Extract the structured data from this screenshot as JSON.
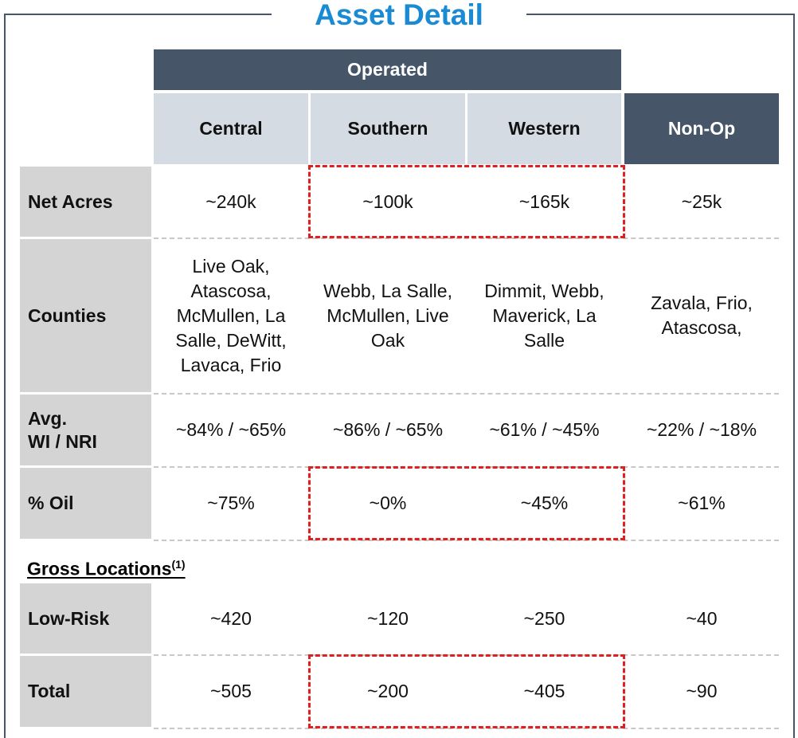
{
  "title": "Asset Detail",
  "group_header": "Operated",
  "columns": [
    "Central",
    "Southern",
    "Western",
    "Non-Op"
  ],
  "rows": [
    {
      "label": "Net Acres",
      "values": [
        "~240k",
        "~100k",
        "~165k",
        "~25k"
      ]
    },
    {
      "label": "Counties",
      "values": [
        "Live Oak, Atascosa, McMullen, La Salle, DeWitt, Lavaca, Frio",
        "Webb, La Salle, McMullen, Live Oak",
        "Dimmit, Webb, Maverick, La Salle",
        "Zavala, Frio, Atascosa,"
      ]
    },
    {
      "label": "Avg.\nWI / NRI",
      "values": [
        "~84% / ~65%",
        "~86% / ~65%",
        "~61% / ~45%",
        "~22% / ~18%"
      ]
    },
    {
      "label": "% Oil",
      "values": [
        "~75%",
        "~0%",
        "~45%",
        "~61%"
      ]
    }
  ],
  "gross_locations": {
    "title": "Gross Locations",
    "note": "(1)",
    "rows": [
      {
        "label": "Low-Risk",
        "values": [
          "~420",
          "~120",
          "~250",
          "~40"
        ]
      },
      {
        "label": "Total",
        "values": [
          "~505",
          "~200",
          "~405",
          "~90"
        ]
      }
    ]
  }
}
